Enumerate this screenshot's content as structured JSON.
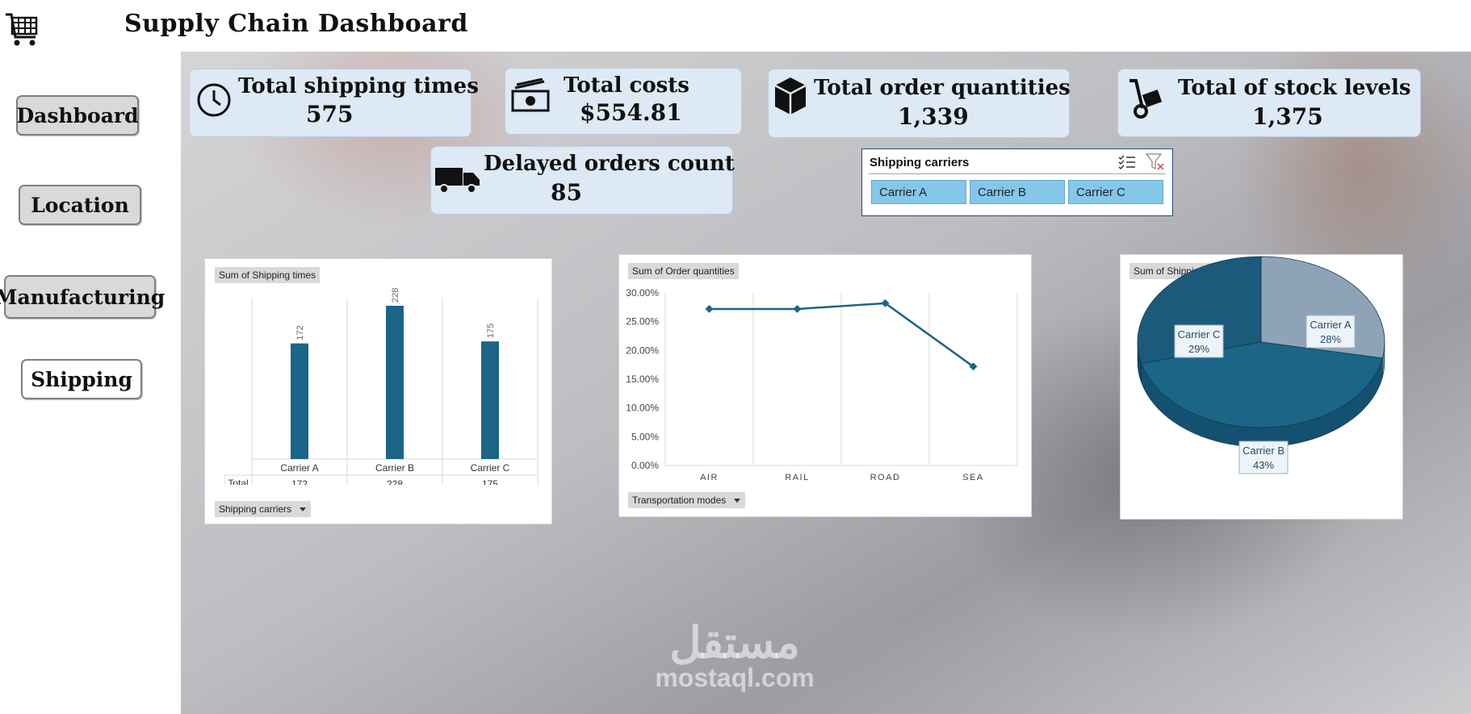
{
  "app": {
    "title": "Supply Chain Dashboard"
  },
  "nav": {
    "dashboard": "Dashboard",
    "location": "Location",
    "manufacturing": "Manufacturing",
    "shipping": "Shipping"
  },
  "kpis": {
    "shipping_times": {
      "label": "Total shipping times",
      "value": "575"
    },
    "costs": {
      "label": "Total costs",
      "value": "$554.81"
    },
    "order_quantities": {
      "label": "Total order quantities",
      "value": "1,339"
    },
    "stock_levels": {
      "label": "Total of stock levels",
      "value": "1,375"
    },
    "delayed_orders": {
      "label": "Delayed orders count",
      "value": "85"
    }
  },
  "slicer": {
    "title": "Shipping carriers",
    "items": [
      "Carrier A",
      "Carrier B",
      "Carrier C"
    ]
  },
  "bar_panel": {
    "title": "Sum of Shipping times",
    "row_label": "Total",
    "filter_label": "Shipping carriers"
  },
  "line_panel": {
    "title": "Sum of Order quantities",
    "filter_label": "Transportation modes"
  },
  "pie_panel": {
    "title": "Sum of Shipping costs"
  },
  "watermark": {
    "arabic": "مستقل",
    "latin": "mostaql.com"
  },
  "colors": {
    "bar": "#1b6587",
    "line": "#1b6587",
    "kpi_bg": "#dde9f5",
    "slicer_btn": "#84c7ea"
  },
  "chart_data": [
    {
      "type": "bar",
      "title": "Sum of Shipping times",
      "categories": [
        "Carrier A",
        "Carrier B",
        "Carrier C"
      ],
      "values": [
        172,
        228,
        175
      ],
      "ylim": [
        0,
        240
      ],
      "grid": false
    },
    {
      "type": "line",
      "title": "Sum of Order quantities",
      "categories": [
        "AIR",
        "RAIL",
        "ROAD",
        "SEA"
      ],
      "values": [
        27.2,
        27.2,
        28.2,
        17.2
      ],
      "yticks": [
        "0.00%",
        "5.00%",
        "10.00%",
        "15.00%",
        "20.00%",
        "25.00%",
        "30.00%"
      ],
      "ylim": [
        0,
        30
      ]
    },
    {
      "type": "pie",
      "title": "Sum of Shipping costs",
      "slices": [
        {
          "label": "Carrier A",
          "pct": "28%",
          "value": 28,
          "color": "#8fa3b8"
        },
        {
          "label": "Carrier B",
          "pct": "43%",
          "value": 43,
          "color": "#1b6587"
        },
        {
          "label": "Carrier C",
          "pct": "29%",
          "value": 29,
          "color": "#1c5a7c"
        }
      ]
    }
  ]
}
